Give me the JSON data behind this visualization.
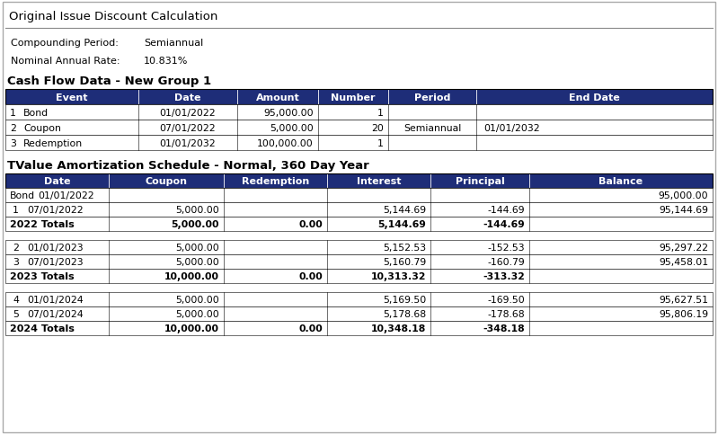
{
  "title": "Original Issue Discount Calculation",
  "compounding_period_label": "Compounding Period:",
  "compounding_period_value": "Semiannual",
  "nominal_rate_label": "Nominal Annual Rate:",
  "nominal_rate_value": "10.831%",
  "cashflow_title": "Cash Flow Data - New Group 1",
  "cashflow_headers": [
    "Event",
    "Date",
    "Amount",
    "Number",
    "Period",
    "End Date"
  ],
  "cashflow_rows": [
    [
      "1",
      "Bond",
      "01/01/2022",
      "95,000.00",
      "1",
      "",
      ""
    ],
    [
      "2",
      "Coupon",
      "07/01/2022",
      "5,000.00",
      "20",
      "Semiannual",
      "01/01/2032"
    ],
    [
      "3",
      "Redemption",
      "01/01/2032",
      "100,000.00",
      "1",
      "",
      ""
    ]
  ],
  "amort_title": "TValue Amortization Schedule - Normal, 360 Day Year",
  "amort_headers": [
    "Date",
    "Coupon",
    "Redemption",
    "Interest",
    "Principal",
    "Balance"
  ],
  "amort_rows": [
    {
      "num": "Bond",
      "date": "01/01/2022",
      "coupon": "",
      "redemption": "",
      "interest": "",
      "principal": "",
      "balance": "95,000.00",
      "bold": false,
      "is_total": false,
      "spacer": false
    },
    {
      "num": "1",
      "date": "07/01/2022",
      "coupon": "5,000.00",
      "redemption": "",
      "interest": "5,144.69",
      "principal": "-144.69",
      "balance": "95,144.69",
      "bold": false,
      "is_total": false,
      "spacer": false
    },
    {
      "num": "2022 Totals",
      "date": "",
      "coupon": "5,000.00",
      "redemption": "0.00",
      "interest": "5,144.69",
      "principal": "-144.69",
      "balance": "",
      "bold": true,
      "is_total": true,
      "spacer": false
    },
    {
      "num": "",
      "date": "",
      "coupon": "",
      "redemption": "",
      "interest": "",
      "principal": "",
      "balance": "",
      "bold": false,
      "is_total": false,
      "spacer": true
    },
    {
      "num": "2",
      "date": "01/01/2023",
      "coupon": "5,000.00",
      "redemption": "",
      "interest": "5,152.53",
      "principal": "-152.53",
      "balance": "95,297.22",
      "bold": false,
      "is_total": false,
      "spacer": false
    },
    {
      "num": "3",
      "date": "07/01/2023",
      "coupon": "5,000.00",
      "redemption": "",
      "interest": "5,160.79",
      "principal": "-160.79",
      "balance": "95,458.01",
      "bold": false,
      "is_total": false,
      "spacer": false
    },
    {
      "num": "2023 Totals",
      "date": "",
      "coupon": "10,000.00",
      "redemption": "0.00",
      "interest": "10,313.32",
      "principal": "-313.32",
      "balance": "",
      "bold": true,
      "is_total": true,
      "spacer": false
    },
    {
      "num": "",
      "date": "",
      "coupon": "",
      "redemption": "",
      "interest": "",
      "principal": "",
      "balance": "",
      "bold": false,
      "is_total": false,
      "spacer": true
    },
    {
      "num": "4",
      "date": "01/01/2024",
      "coupon": "5,000.00",
      "redemption": "",
      "interest": "5,169.50",
      "principal": "-169.50",
      "balance": "95,627.51",
      "bold": false,
      "is_total": false,
      "spacer": false
    },
    {
      "num": "5",
      "date": "07/01/2024",
      "coupon": "5,000.00",
      "redemption": "",
      "interest": "5,178.68",
      "principal": "-178.68",
      "balance": "95,806.19",
      "bold": false,
      "is_total": false,
      "spacer": false
    },
    {
      "num": "2024 Totals",
      "date": "",
      "coupon": "10,000.00",
      "redemption": "0.00",
      "interest": "10,348.18",
      "principal": "-348.18",
      "balance": "",
      "bold": true,
      "is_total": true,
      "spacer": false
    }
  ],
  "header_bg": "#1e2d78",
  "header_fg": "#ffffff",
  "bg_color": "#ffffff",
  "border_color": "#000000",
  "text_color": "#000000",
  "fig_w": 7.99,
  "fig_h": 4.85,
  "dpi": 100
}
